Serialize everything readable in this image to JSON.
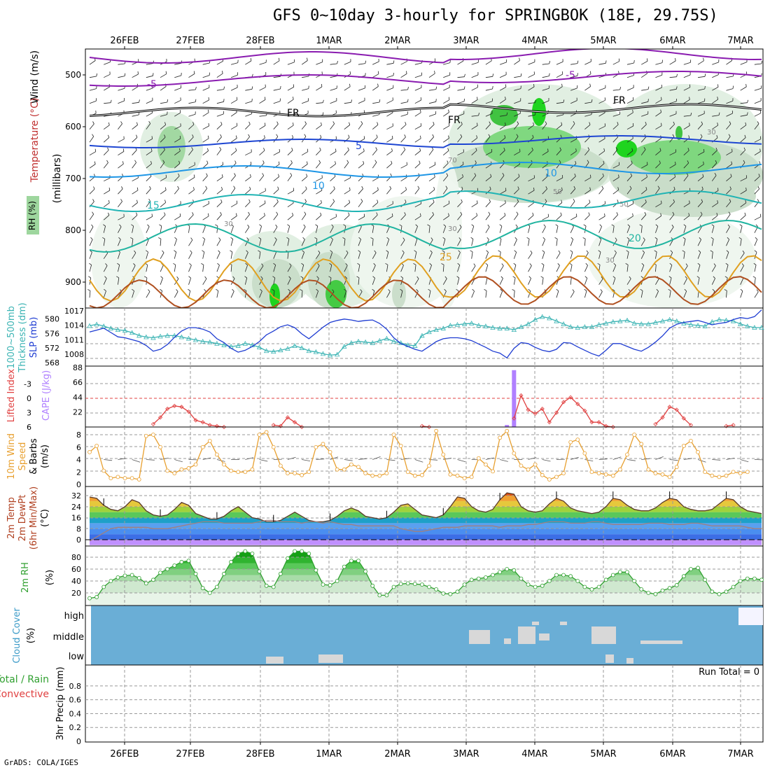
{
  "title": "GFS 0~10day 3-hourly for SPRINGBOK (18E, 29.75S)",
  "credit": "GrADS: COLA/IGES",
  "date_labels": [
    "26FEB",
    "27FEB",
    "28FEB",
    "1MAR",
    "2MAR",
    "3MAR",
    "4MAR",
    "5MAR",
    "6MAR",
    "7MAR"
  ],
  "colors": {
    "rh_green": "#3cc83c",
    "slp": "#1e3cd2",
    "thickness": "#3cb4b4",
    "lifted_index": "#e04040",
    "cape": "#b080ff",
    "wind": "#e8a030",
    "rh2m": "#30a030",
    "cloud": "#6aaed6",
    "dewpoint_band": "#5aa0f0",
    "temp_orange": "#f08020"
  },
  "chart_data": [
    {
      "panel": "upper_air",
      "type": "heatmap",
      "ylabel": "(millibars)",
      "left_labels": [
        "Wind (m/s)",
        "Temperature (°C)",
        "RH (%)"
      ],
      "yticks": [
        500,
        600,
        700,
        800,
        900
      ],
      "contour_labels": [
        "-5",
        "-5",
        "FR",
        "FR",
        "FR",
        "5",
        "10",
        "10",
        "15",
        "20",
        "25",
        "30",
        "30",
        "30",
        "30",
        "50",
        "50",
        "70"
      ]
    },
    {
      "panel": "slp_thickness",
      "type": "line",
      "left_labels": [
        "1000~500mb",
        "Thickness (dm)",
        "SLP (mb)"
      ],
      "y1ticks": [
        "1017",
        "1014",
        "1011",
        "1008"
      ],
      "y2ticks": [
        "580",
        "576",
        "572",
        "568"
      ],
      "series": [
        {
          "name": "SLP (mb)",
          "axis": "slp",
          "values": [
            1012.6,
            1013,
            1013.4,
            1012.5,
            1011.6,
            1011.4,
            1011,
            1010.6,
            1009.8,
            1008.6,
            1009,
            1010,
            1011.5,
            1012.8,
            1013.5,
            1013.5,
            1013.2,
            1012.6,
            1011.2,
            1010.4,
            1009.2,
            1008.4,
            1008.8,
            1009.6,
            1010.6,
            1012,
            1012.8,
            1013.7,
            1014.1,
            1013.5,
            1012.2,
            1011.2,
            1012.4,
            1013.6,
            1014.6,
            1015,
            1015.3,
            1015.1,
            1014.8,
            1015,
            1015.1,
            1014.4,
            1013.2,
            1011.4,
            1010.2,
            1009.6,
            1009,
            1008.6,
            1009.6,
            1010.6,
            1011.2,
            1011.4,
            1011.4,
            1011.2,
            1010.8,
            1010.1,
            1009.4,
            1008.6,
            1008.2,
            1007.2,
            1009.2,
            1010.4,
            1010.2,
            1009.4,
            1008.8,
            1008.5,
            1009,
            1010.4,
            1010.3,
            1009.5,
            1008.8,
            1008.1,
            1007.6,
            1008.8,
            1010.2,
            1010.2,
            1009.6,
            1009,
            1008.6,
            1009.4,
            1010.5,
            1011.8,
            1013.4,
            1014.2,
            1014.6,
            1014.8,
            1015,
            1014.6,
            1014.1,
            1014.4,
            1014.6,
            1015.2,
            1015.6,
            1015.4,
            1015.8,
            1017.2
          ]
        },
        {
          "name": "1000~500mb Thickness (dm)",
          "axis": "thk",
          "values": [
            578.1,
            578.5,
            578,
            577.4,
            577,
            576.8,
            576.2,
            575.4,
            575,
            574.8,
            575.2,
            575.4,
            575.4,
            575,
            574.6,
            574.2,
            573.8,
            573.6,
            573.2,
            572.8,
            572.4,
            572.6,
            573.2,
            572.8,
            572.2,
            571.2,
            571,
            571.4,
            571.8,
            572.6,
            572,
            571.2,
            570.9,
            570.4,
            570,
            570.2,
            572.4,
            573.4,
            573.8,
            573.6,
            573.4,
            574,
            574.6,
            573.8,
            573.4,
            572.8,
            572.6,
            575.4,
            576.4,
            577,
            577.4,
            578.2,
            578.4,
            578.6,
            578.8,
            578.2,
            578,
            577.6,
            577.4,
            577.4,
            577,
            577.8,
            578.6,
            579.8,
            580.6,
            580.2,
            579.4,
            578.6,
            577.8,
            577.6,
            577.8,
            577.8,
            578.4,
            578.8,
            579.2,
            579.4,
            579.6,
            578.8,
            578.6,
            578.6,
            579,
            579.4,
            579.8,
            579.4,
            578.8,
            578.4,
            578.2,
            578,
            579.2,
            579.8,
            579.6,
            579.4,
            578.6,
            578,
            577.6,
            577.6
          ]
        }
      ]
    },
    {
      "panel": "instability",
      "type": "line",
      "left_labels": [
        "Lifted Index",
        "CAPE (J/kg)"
      ],
      "li_ticks": [
        "-3",
        "0",
        "3",
        "6"
      ],
      "cape_ticks": [
        "88",
        "66",
        "44",
        "22"
      ],
      "series": [
        {
          "name": "Lifted Index",
          "values": [
            null,
            null,
            null,
            null,
            null,
            null,
            null,
            null,
            null,
            5.4,
            4,
            2.2,
            1.6,
            1.8,
            2.8,
            4.6,
            5,
            5.6,
            5.8,
            6,
            null,
            null,
            null,
            null,
            null,
            null,
            5.6,
            5.8,
            4,
            5,
            6,
            null,
            null,
            null,
            null,
            null,
            null,
            null,
            null,
            null,
            null,
            null,
            null,
            null,
            null,
            null,
            null,
            5.8,
            6,
            null,
            null,
            null,
            null,
            null,
            null,
            null,
            null,
            null,
            null,
            null,
            4.2,
            -0.6,
            2.4,
            3.2,
            2.2,
            5,
            3,
            0.8,
            -0.2,
            1.2,
            2.6,
            5,
            5,
            5.8,
            6,
            null,
            null,
            null,
            null,
            null,
            5.4,
            4,
            1.8,
            2.4,
            4.2,
            5.6,
            null,
            null,
            null,
            null,
            5.8,
            5.6,
            null,
            null,
            null,
            null
          ]
        },
        {
          "name": "CAPE (J/kg)",
          "values": [
            0,
            0,
            0,
            0,
            0,
            0,
            0,
            0,
            0,
            0,
            0,
            0,
            0,
            0,
            0,
            0,
            0,
            0,
            0,
            0,
            0,
            0,
            0,
            0,
            0,
            0,
            0,
            0,
            0,
            0,
            0,
            0,
            0,
            0,
            0,
            0,
            0,
            0,
            0,
            0,
            0,
            0,
            0,
            0,
            0,
            0,
            0,
            0,
            0,
            0,
            0,
            0,
            0,
            0,
            0,
            0,
            0,
            0,
            0,
            3,
            84,
            0,
            0,
            0,
            0,
            0,
            0,
            0,
            0,
            0,
            0,
            0,
            0,
            0,
            0,
            0,
            0,
            0,
            0,
            0,
            0,
            0,
            0,
            0,
            0,
            0,
            0,
            0,
            0,
            0,
            0,
            0,
            0,
            0,
            0,
            0,
            0,
            0
          ]
        }
      ]
    },
    {
      "panel": "wind10m",
      "type": "line",
      "left_labels": [
        "10m Wind",
        "Speed",
        "& Barbs",
        "(m/s)"
      ],
      "yticks": [
        "8",
        "6",
        "4",
        "2",
        "0"
      ],
      "series": [
        {
          "name": "10m Wind Speed",
          "values": [
            5.2,
            6.2,
            2.2,
            1,
            1.2,
            1,
            1,
            0.8,
            7.8,
            8,
            6,
            2.2,
            1.8,
            2.4,
            2.6,
            3.2,
            6,
            7,
            4.8,
            3.2,
            2.2,
            2,
            2,
            2.4,
            8,
            8.4,
            6,
            3,
            1.8,
            1.8,
            1.5,
            2,
            6,
            6.5,
            5.2,
            2.4,
            2.4,
            3.2,
            2.8,
            1.8,
            1.4,
            1.4,
            1.8,
            8,
            6.2,
            2,
            1.4,
            1.5,
            3,
            8.6,
            4.8,
            1.6,
            1.4,
            1,
            1.2,
            4.2,
            3.2,
            2.1,
            7.5,
            8.6,
            5,
            3,
            2.4,
            3.2,
            1.5,
            0.8,
            1.2,
            1.8,
            6.8,
            7.2,
            5,
            2,
            1.8,
            1.6,
            1.4,
            2.4,
            4.8,
            8,
            6.5,
            2.4,
            1.8,
            1.6,
            1.2,
            2.8,
            6.2,
            7,
            5.2,
            2,
            1.4,
            1.2,
            1.4,
            2,
            1.8,
            2
          ]
        }
      ]
    },
    {
      "panel": "temperature2m",
      "type": "area",
      "left_labels": [
        "2m Temp",
        "2m DewPt",
        "(6hr Min/Max)",
        "(°C)"
      ],
      "yticks": [
        "32",
        "24",
        "16",
        "8",
        "0"
      ],
      "series": [
        {
          "name": "2m Temp",
          "values": [
            31,
            30,
            25,
            22,
            21,
            24,
            29,
            27,
            21,
            18,
            17,
            18,
            22,
            27,
            25,
            19,
            17,
            15,
            15,
            17,
            21,
            24,
            20,
            16,
            15,
            13,
            13,
            14,
            17,
            20,
            17,
            14,
            13,
            13,
            14,
            17,
            21,
            23,
            21,
            17,
            16,
            15,
            16,
            20,
            25,
            26,
            22,
            18,
            17,
            16,
            18,
            24,
            31,
            30,
            24,
            21,
            20,
            22,
            29,
            34,
            33,
            24,
            21,
            20,
            21,
            26,
            30,
            28,
            23,
            21,
            20,
            19,
            20,
            24,
            30,
            29,
            25,
            22,
            21,
            21,
            23,
            27,
            30,
            29,
            24,
            22,
            21,
            21,
            22,
            26,
            30,
            29,
            24,
            21,
            20,
            19
          ]
        },
        {
          "name": "2m DewPt",
          "values": [
            -1,
            2,
            5,
            8,
            9,
            9,
            9,
            9,
            9,
            8,
            8,
            8,
            9,
            10,
            11,
            12,
            13,
            13,
            13,
            12,
            12,
            12,
            12,
            12,
            13,
            14,
            14,
            13,
            13,
            13,
            12,
            13,
            13,
            12,
            13,
            12,
            11,
            11,
            10,
            10,
            10,
            10,
            10,
            10,
            8,
            7,
            6,
            6,
            7,
            8,
            9,
            9,
            9,
            10,
            10,
            10,
            10,
            10,
            9,
            10,
            10,
            10,
            11,
            11,
            12,
            13,
            13,
            13,
            12,
            12,
            12,
            13,
            13,
            12,
            11,
            11,
            11,
            11,
            11,
            12,
            12,
            12,
            11,
            11,
            11,
            12,
            12,
            11,
            10,
            10,
            10,
            10,
            10,
            9,
            8,
            8
          ]
        }
      ]
    },
    {
      "panel": "rh2m",
      "type": "area",
      "left_labels": [
        "2m RH",
        "(%)"
      ],
      "yticks": [
        "80",
        "60",
        "40",
        "20"
      ],
      "series": [
        {
          "name": "2m RH",
          "values": [
            11,
            13,
            30,
            40,
            46,
            49,
            50,
            45,
            36,
            42,
            54,
            60,
            66,
            72,
            74,
            52,
            28,
            20,
            30,
            52,
            72,
            86,
            90,
            86,
            56,
            32,
            30,
            52,
            78,
            90,
            90,
            86,
            58,
            34,
            33,
            40,
            64,
            74,
            74,
            56,
            32,
            16,
            16,
            30,
            35,
            36,
            35,
            34,
            30,
            26,
            19,
            18,
            22,
            34,
            42,
            44,
            46,
            50,
            55,
            60,
            58,
            44,
            34,
            30,
            32,
            40,
            50,
            50,
            48,
            40,
            30,
            26,
            30,
            42,
            50,
            55,
            55,
            40,
            26,
            20,
            18,
            24,
            28,
            33,
            48,
            60,
            62,
            42,
            22,
            18,
            22,
            30,
            40,
            44,
            44,
            42
          ]
        }
      ]
    },
    {
      "panel": "cloud_cover",
      "type": "heatmap",
      "left_labels": [
        "Cloud Cover",
        "(%)"
      ],
      "levels": [
        "high",
        "middle",
        "low"
      ]
    },
    {
      "panel": "precip",
      "type": "bar",
      "left_labels": [
        "Total / Rain",
        "Convective",
        "3hr Precip (mm)"
      ],
      "yticks": [
        "0.8",
        "0.6",
        "0.4",
        "0.2",
        "0"
      ],
      "run_total": "Run Total = 0",
      "values": []
    }
  ]
}
